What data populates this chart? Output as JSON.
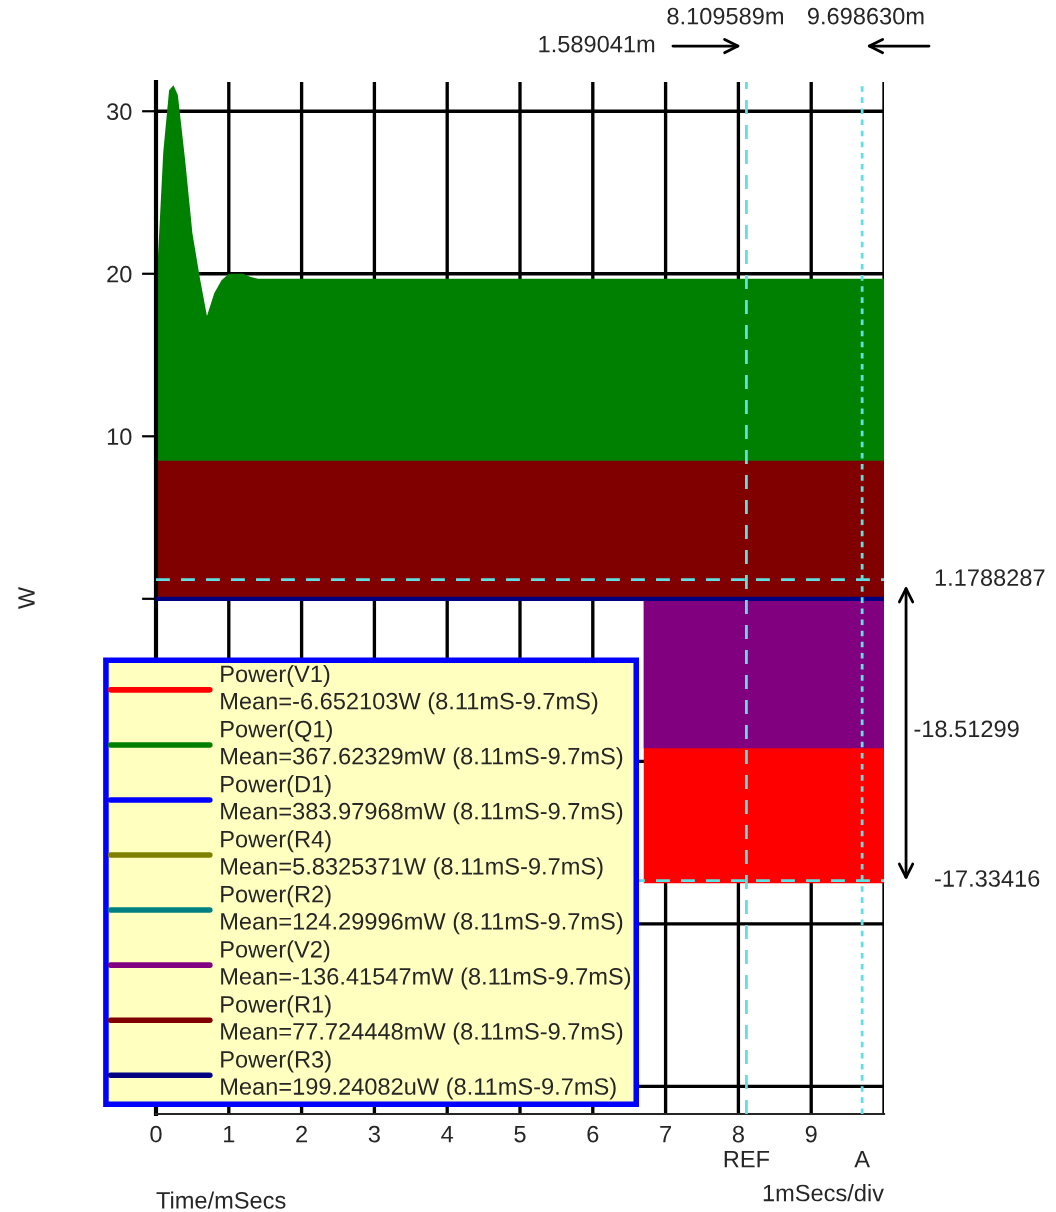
{
  "chart_data": {
    "type": "area",
    "xlabel": "Time/mSecs",
    "ylabel": "W",
    "xlim": [
      0,
      10
    ],
    "xticks": [
      0,
      1,
      2,
      3,
      4,
      5,
      6,
      7,
      8,
      9,
      {
        "value": 10,
        "label": null
      }
    ],
    "ylim": [
      -31.7,
      31.8
    ],
    "yticks": [
      30,
      20,
      10,
      {
        "value": 0,
        "label": null
      },
      {
        "value": -10,
        "label": null
      },
      {
        "value": -20,
        "label": null
      },
      {
        "value": -30,
        "label": null
      }
    ],
    "grid": true,
    "legend": "bottom left",
    "series": [
      {
        "name": "Power(V1)\nMean=-6.652103W (8.11mS-9.7mS)",
        "color": "#ff0000",
        "x": [
          6.7,
          10
        ],
        "values": [
          -17.5,
          -17.5
        ]
      },
      {
        "name": "Power(Q1)\nMean=367.62329mW (8.11mS-9.7mS)",
        "color": "#008000",
        "x": [
          0,
          0.02,
          0.1,
          0.18,
          0.24,
          0.3,
          0.4,
          0.5,
          0.6,
          0.7,
          0.8,
          0.9,
          1.0,
          1.2,
          1.3,
          1.4,
          10
        ],
        "values": [
          14.7,
          20.4,
          27.5,
          31.3,
          31.6,
          31.0,
          27.0,
          22.5,
          19.8,
          17.4,
          18.8,
          19.6,
          20.0,
          20.0,
          19.8,
          19.7,
          19.7
        ]
      },
      {
        "name": "Power(D1)\nMean=383.97968mW (8.11mS-9.7mS)",
        "color": "#0000ff"
      },
      {
        "name": "Power(R4)\nMean=5.8325371W (8.11mS-9.7mS)",
        "color": "#808000"
      },
      {
        "name": "Power(R2)\nMean=124.29996mW (8.11mS-9.7mS)",
        "color": "#008080"
      },
      {
        "name": "Power(V2)\nMean=-136.41547mW (8.11mS-9.7mS)",
        "color": "#800080",
        "x": [
          6.7,
          10
        ],
        "values": [
          -9.2,
          -9.2
        ]
      },
      {
        "name": "Power(R1)\nMean=77.724448mW (8.11mS-9.7mS)",
        "color": "#800000",
        "x": [
          0,
          10
        ],
        "values": [
          8.5,
          8.5
        ]
      },
      {
        "name": "Power(R3)\nMean=199.24082uW (8.11mS-9.7mS)",
        "color": "#000080",
        "type": "line",
        "x": [
          0,
          10
        ],
        "values": [
          0,
          0
        ]
      }
    ],
    "ref_lines": [
      {
        "axis": "x",
        "value": 8.11,
        "label": "REF",
        "color": "#60e0e0",
        "line_style": "dashed"
      },
      {
        "axis": "x",
        "value": 9.7,
        "label": "A",
        "color": "#60e0e0",
        "line_style": "dotted"
      },
      {
        "axis": "y",
        "value": 1.1788287,
        "label": "1.1788287",
        "color": "#60e0e0",
        "line_style": "dashed"
      },
      {
        "axis": "y",
        "value": -17.33416,
        "label": "-17.33416",
        "color": "#60e0e0",
        "line_style": "dashed"
      }
    ],
    "annotations": [
      "8.109589m",
      "9.698630m",
      "1.589041m",
      "-18.51299",
      "1mSecs/div"
    ]
  }
}
